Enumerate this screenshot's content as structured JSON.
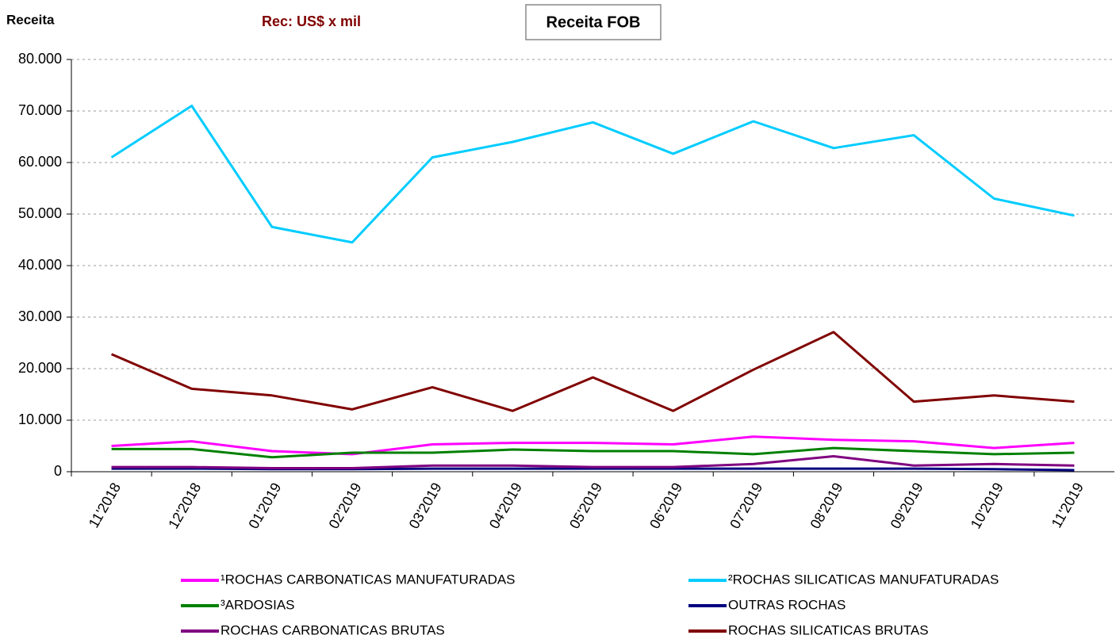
{
  "chart_data": {
    "type": "line",
    "title": "Receita FOB",
    "subtitle": "Rec: US$ x mil",
    "y_label": "Receita",
    "categories": [
      "11'2018",
      "12'2018",
      "01'2019",
      "02'2019",
      "03'2019",
      "04'2019",
      "05'2019",
      "06'2019",
      "07'2019",
      "08'2019",
      "09'2019",
      "10'2019",
      "11'2019"
    ],
    "series": [
      {
        "name": "¹ROCHAS CARBONATICAS MANUFATURADAS",
        "color": "#ff00ff",
        "values": [
          5000,
          5900,
          4000,
          3400,
          5300,
          5600,
          5600,
          5300,
          6800,
          6200,
          5900,
          4600,
          5600
        ]
      },
      {
        "name": "²ROCHAS SILICATICAS MANUFATURADAS",
        "color": "#00ccff",
        "values": [
          61000,
          71000,
          47500,
          44500,
          61000,
          64000,
          67800,
          61700,
          68000,
          62800,
          65300,
          53000,
          49700
        ]
      },
      {
        "name": "³ARDOSIAS",
        "color": "#008000",
        "values": [
          4400,
          4400,
          2800,
          3700,
          3700,
          4300,
          4000,
          4000,
          3400,
          4600,
          4000,
          3400,
          3700
        ]
      },
      {
        "name": "OUTRAS ROCHAS",
        "color": "#000080",
        "values": [
          600,
          600,
          500,
          500,
          600,
          600,
          600,
          600,
          600,
          600,
          600,
          500,
          300
        ]
      },
      {
        "name": "ROCHAS CARBONATICAS BRUTAS",
        "color": "#800080",
        "values": [
          900,
          900,
          700,
          700,
          1200,
          1200,
          900,
          900,
          1500,
          3000,
          1200,
          1500,
          1200
        ]
      },
      {
        "name": "ROCHAS SILICATICAS BRUTAS",
        "color": "#800000",
        "values": [
          22800,
          16100,
          14800,
          12100,
          16400,
          11800,
          18300,
          11800,
          19800,
          27100,
          13600,
          14800,
          13600
        ]
      }
    ],
    "ylim": [
      0,
      80000
    ],
    "yticks": [
      0,
      {
        "value": 10000,
        "label": "10.000"
      },
      {
        "value": 20000,
        "label": "20.000"
      },
      {
        "value": 30000,
        "label": "30.000"
      },
      {
        "value": 40000,
        "label": "40.000"
      },
      {
        "value": 50000,
        "label": "50.000"
      },
      {
        "value": 60000,
        "label": "60.000"
      },
      {
        "value": 70000,
        "label": "70.000"
      },
      {
        "value": 80000,
        "label": "80.000"
      }
    ],
    "grid": true,
    "legend": "bottom"
  }
}
